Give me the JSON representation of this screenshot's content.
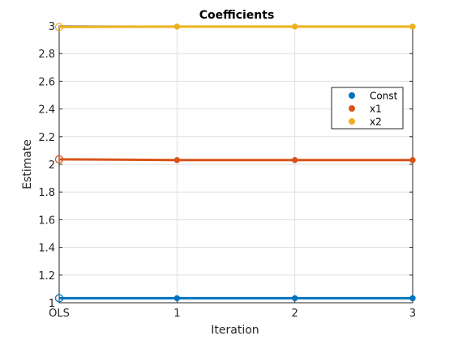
{
  "chart_data": {
    "type": "line",
    "title": "Coefficients",
    "xlabel": "Iteration",
    "ylabel": "Estimate",
    "categories": [
      "OLS",
      "1",
      "2",
      "3"
    ],
    "yticks": [
      "1",
      "1.2",
      "1.4",
      "1.6",
      "1.8",
      "2",
      "2.2",
      "2.4",
      "2.6",
      "2.8",
      "3"
    ],
    "ylim": [
      1,
      3
    ],
    "grid": true,
    "legend_placement": "right",
    "series": [
      {
        "name": "Const",
        "color": "#0072BD",
        "values": [
          1.033,
          1.033,
          1.033,
          1.033
        ]
      },
      {
        "name": "x1",
        "color": "#D95319",
        "values": [
          2.036,
          2.031,
          2.031,
          2.031
        ]
      },
      {
        "name": "x2",
        "color": "#EDB120",
        "values": [
          2.992,
          2.995,
          2.995,
          2.995
        ]
      }
    ]
  }
}
